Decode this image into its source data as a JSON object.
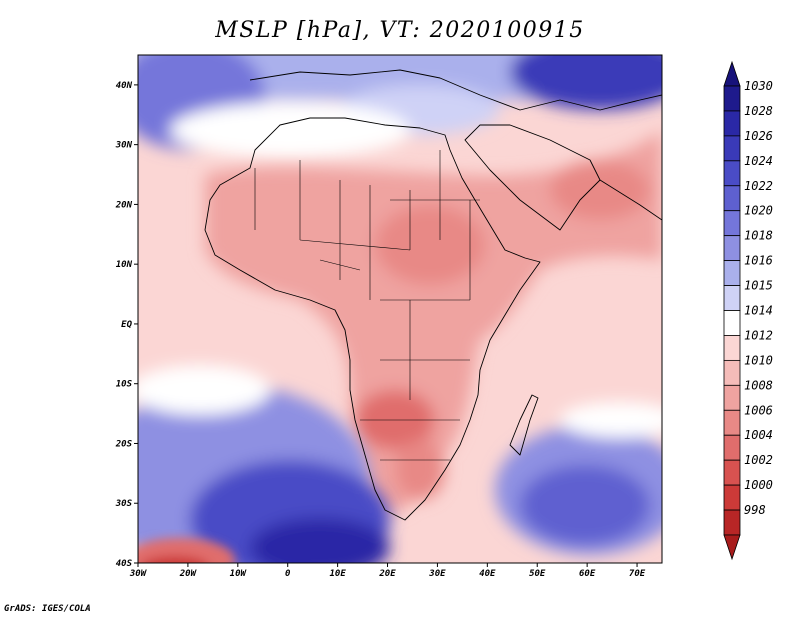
{
  "title": "MSLP [hPa], VT: 2020100915",
  "credit": "GrADS: IGES/COLA",
  "map": {
    "lon_range": [
      -30,
      75
    ],
    "lat_range": [
      -40,
      45
    ],
    "lat_ticks": [
      {
        "value": 40,
        "label": "40N"
      },
      {
        "value": 30,
        "label": "30N"
      },
      {
        "value": 20,
        "label": "20N"
      },
      {
        "value": 10,
        "label": "10N"
      },
      {
        "value": 0,
        "label": "EQ"
      },
      {
        "value": -10,
        "label": "10S"
      },
      {
        "value": -20,
        "label": "20S"
      },
      {
        "value": -30,
        "label": "30S"
      },
      {
        "value": -40,
        "label": "40S"
      }
    ],
    "lon_ticks": [
      {
        "value": -30,
        "label": "30W"
      },
      {
        "value": -20,
        "label": "20W"
      },
      {
        "value": -10,
        "label": "10W"
      },
      {
        "value": 0,
        "label": "0"
      },
      {
        "value": 10,
        "label": "10E"
      },
      {
        "value": 20,
        "label": "20E"
      },
      {
        "value": 30,
        "label": "30E"
      },
      {
        "value": 40,
        "label": "40E"
      },
      {
        "value": 50,
        "label": "50E"
      },
      {
        "value": 60,
        "label": "60E"
      },
      {
        "value": 70,
        "label": "70E"
      }
    ]
  },
  "colorbar": {
    "levels": [
      {
        "label": "1030",
        "color": "#1e1a8c"
      },
      {
        "label": "1028",
        "color": "#2a28a6"
      },
      {
        "label": "1026",
        "color": "#3a3ab8"
      },
      {
        "label": "1024",
        "color": "#4a4cc6"
      },
      {
        "label": "1022",
        "color": "#5e60d0"
      },
      {
        "label": "1020",
        "color": "#7476da"
      },
      {
        "label": "1018",
        "color": "#8e90e2"
      },
      {
        "label": "1016",
        "color": "#aab0ec"
      },
      {
        "label": "1015",
        "color": "#cfd2f6"
      },
      {
        "label": "1014",
        "color": "#ffffff"
      },
      {
        "label": "1012",
        "color": "#fbd6d4"
      },
      {
        "label": "1010",
        "color": "#f5bcb9"
      },
      {
        "label": "1008",
        "color": "#efa3a0"
      },
      {
        "label": "1006",
        "color": "#e88986"
      },
      {
        "label": "1004",
        "color": "#e06d6c"
      },
      {
        "label": "1002",
        "color": "#d85250"
      },
      {
        "label": "1000",
        "color": "#cc3a38"
      },
      {
        "label": "998",
        "color": "#b82626"
      }
    ],
    "top_arrow_color": "#17127a",
    "bottom_arrow_color": "#a81c1c"
  }
}
